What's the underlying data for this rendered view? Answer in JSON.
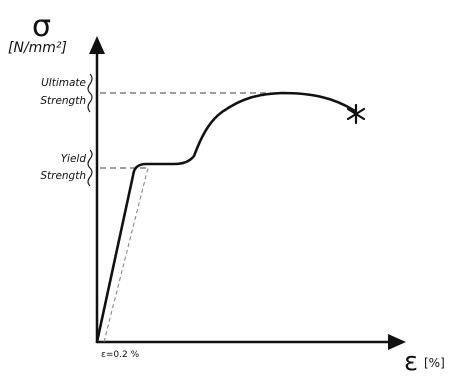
{
  "axes": {
    "y_symbol": "σ",
    "y_unit": "[N/mm²]",
    "x_symbol": "ε",
    "x_unit": "[%]"
  },
  "annotations": {
    "ultimate_line1": "Ultimate",
    "ultimate_line2": "Strength",
    "yield_line1": "Yield",
    "yield_line2": "Strength",
    "offset_label": "ε=0.2 %"
  },
  "colors": {
    "curve": "#111111",
    "dashed": "#666666"
  },
  "icons": {
    "fracture": "fracture-star-icon",
    "x_arrow": "arrowhead-right-icon",
    "y_arrow": "arrowhead-up-icon"
  }
}
